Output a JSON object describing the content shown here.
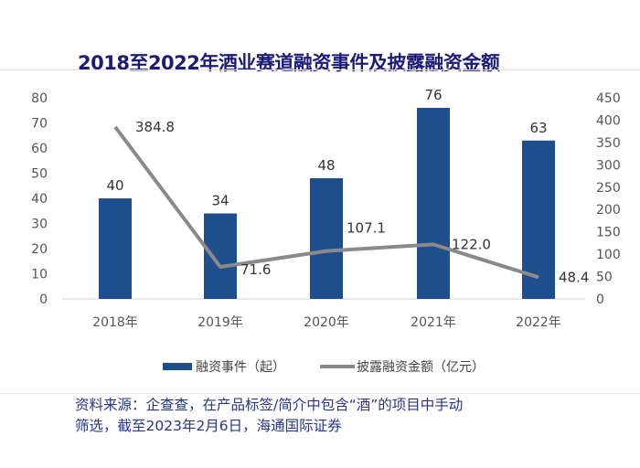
{
  "chart_data": {
    "type": "bar+line",
    "title": "2018至2022年酒业赛道融资事件及披露融资金额",
    "categories": [
      "2018年",
      "2019年",
      "2020年",
      "2021年",
      "2022年"
    ],
    "series": [
      {
        "name": "融资事件（起）",
        "type": "bar",
        "axis": "left",
        "values": [
          40,
          34,
          48,
          76,
          63
        ],
        "color": "#1f4e8c"
      },
      {
        "name": "披露融资金额（亿元）",
        "type": "line",
        "axis": "right",
        "values": [
          384.8,
          71.6,
          107.1,
          122.0,
          48.4
        ],
        "color": "#8a8a8a"
      }
    ],
    "data_labels_bar": [
      "40",
      "34",
      "48",
      "76",
      "63"
    ],
    "data_labels_line": [
      "384.8",
      "71.6",
      "107.1",
      "122.0",
      "48.4"
    ],
    "y_left": {
      "range": [
        0,
        80
      ],
      "ticks": [
        "0",
        "10",
        "20",
        "30",
        "40",
        "50",
        "60",
        "70",
        "80"
      ]
    },
    "y_right": {
      "range": [
        0,
        450
      ],
      "ticks": [
        "0",
        "50",
        "100",
        "150",
        "200",
        "250",
        "300",
        "350",
        "400",
        "450"
      ]
    },
    "grid": false,
    "legend": "bottom"
  },
  "source": {
    "line1": "资料来源：企查查，在产品标签/简介中包含“酒”的项目中手动",
    "line2": "筛选，截至2023年2月6日，海通国际证券"
  }
}
